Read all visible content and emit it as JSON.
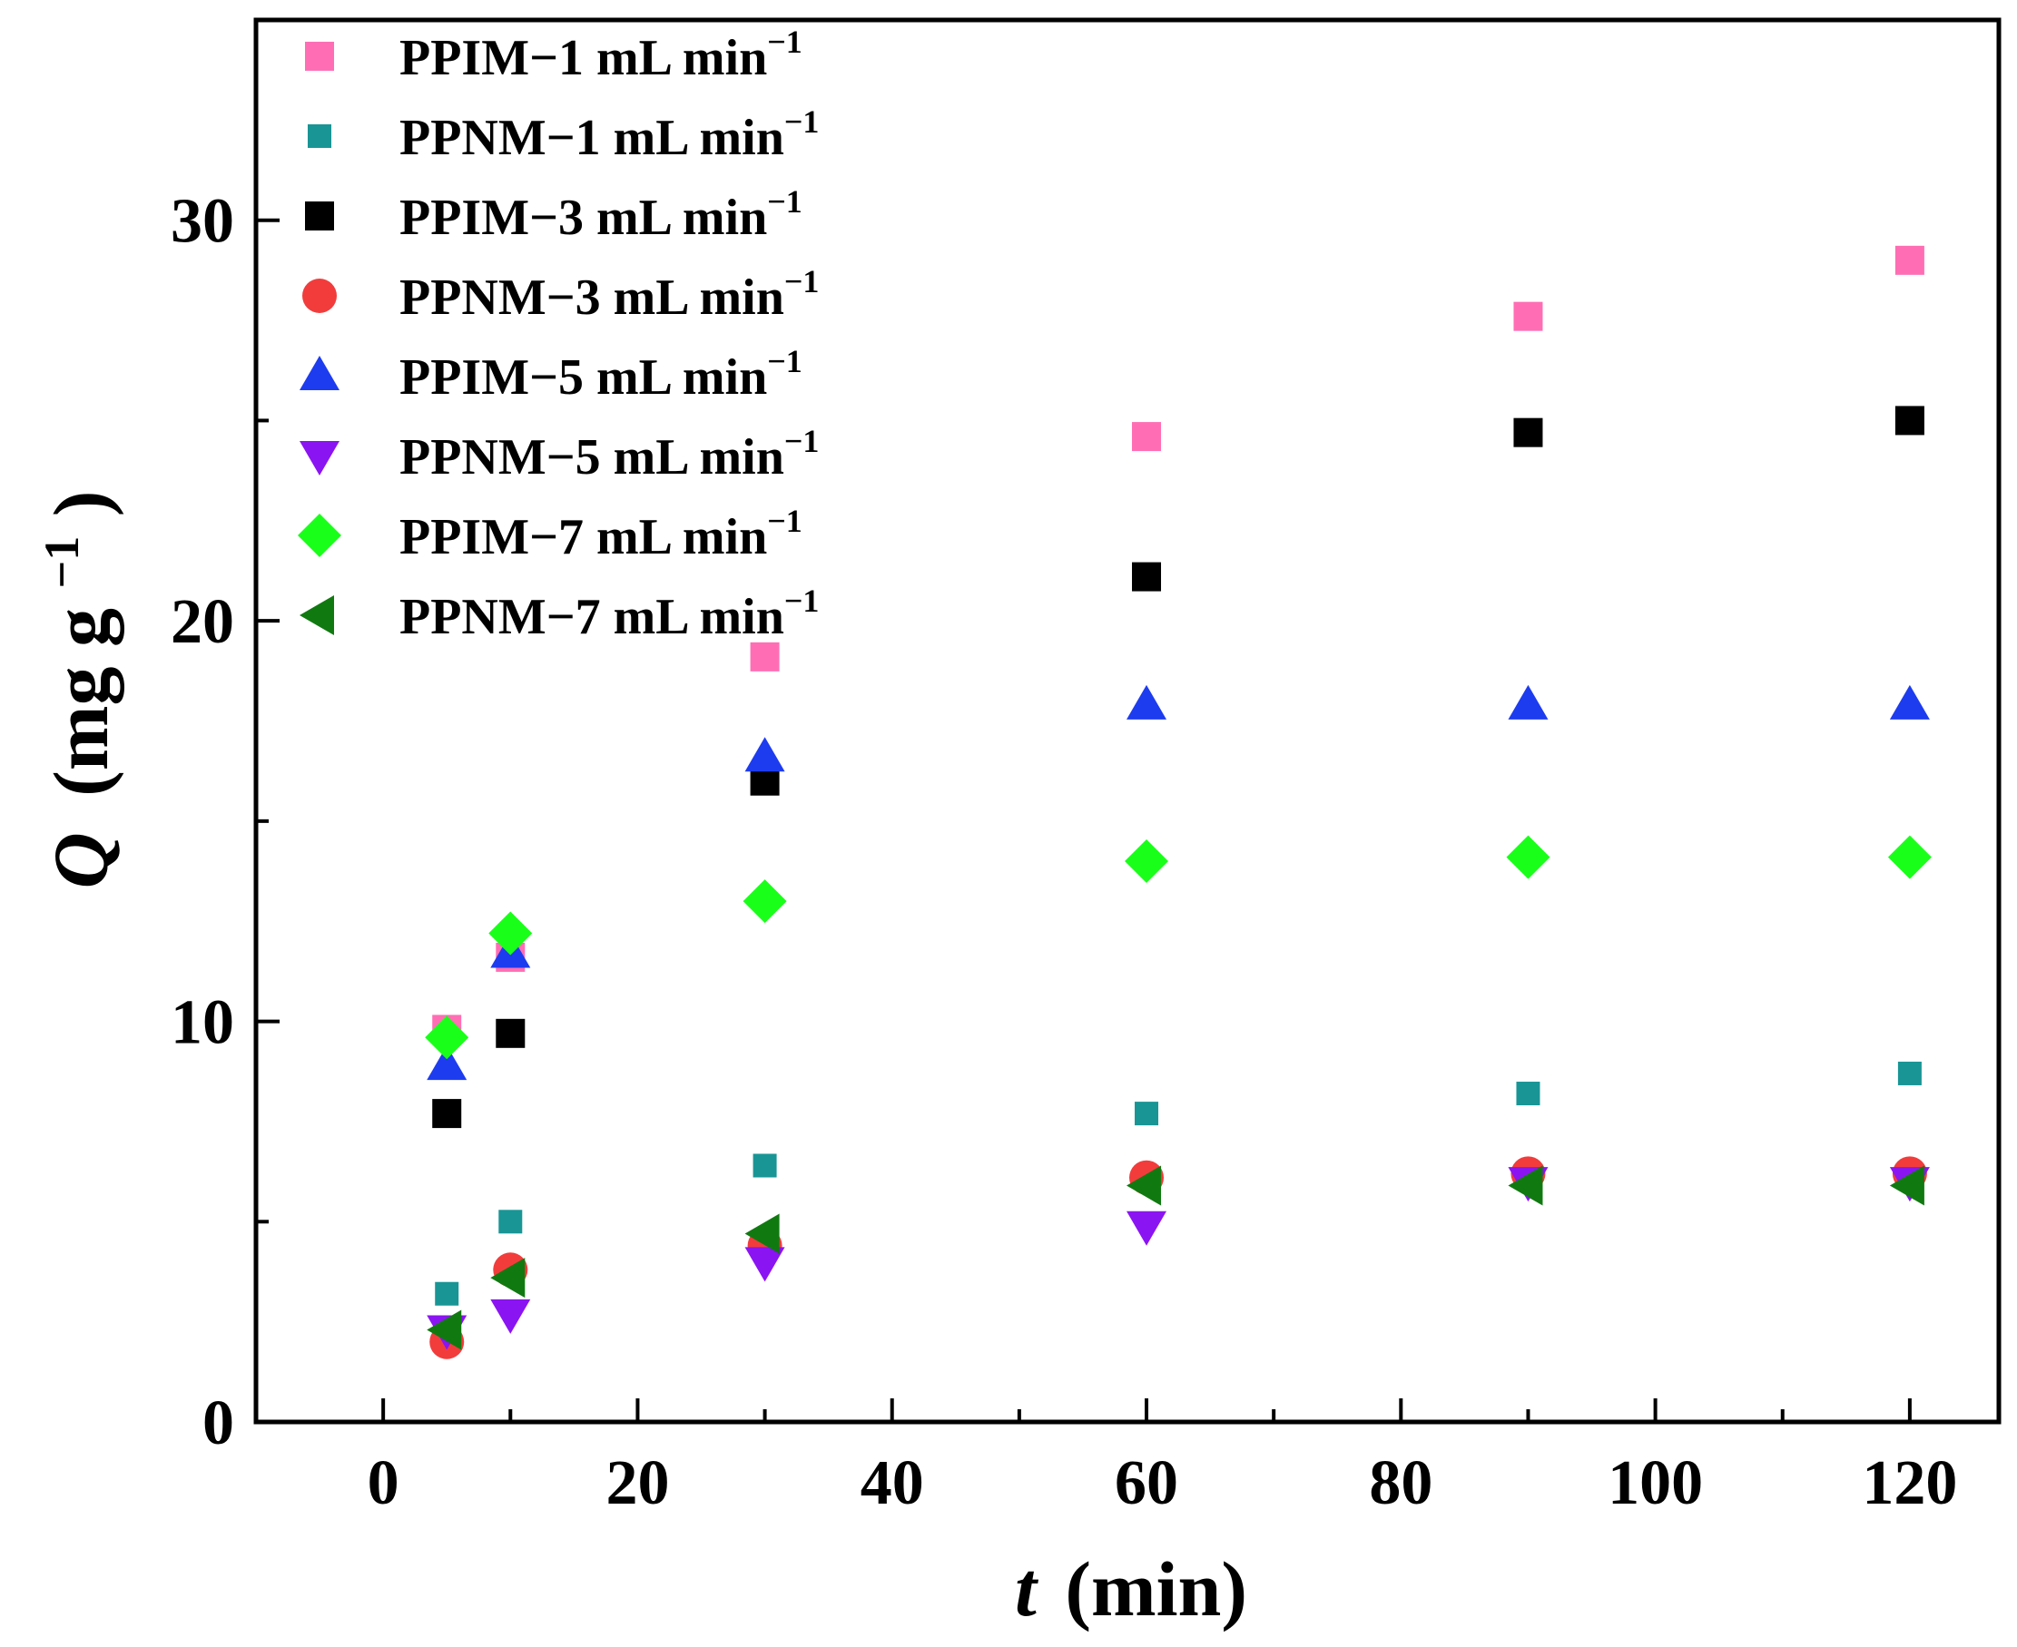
{
  "chart_data": {
    "type": "scatter",
    "xlabel": "(min)",
    "xlabel_italic": "t",
    "ylabel": "(mg g",
    "ylabel_italic": "Q",
    "ylabel_sup": "−1",
    "ylabel_close": ")",
    "xlim": [
      -10,
      127
    ],
    "ylim": [
      0,
      35
    ],
    "x_ticks": [
      0,
      20,
      40,
      60,
      80,
      100,
      120
    ],
    "x_ticks_minor": [
      10,
      30,
      50,
      70,
      90,
      110
    ],
    "y_ticks": [
      0,
      10,
      20,
      30
    ],
    "y_ticks_minor": [
      5,
      15,
      25
    ],
    "legend_position": "top-left",
    "series": [
      {
        "name": "PPIM−1 mL min",
        "sup": "−1",
        "marker": "square",
        "color": "#ff6eb4",
        "x": [
          5,
          10,
          30,
          60,
          90,
          120
        ],
        "y": [
          9.8,
          11.6,
          19.1,
          24.6,
          27.6,
          29.0
        ]
      },
      {
        "name": "PPNM−1 mL min",
        "sup": "−1",
        "marker": "square-small",
        "color": "#199595",
        "x": [
          5,
          10,
          30,
          60,
          90,
          120
        ],
        "y": [
          3.2,
          5.0,
          6.4,
          7.7,
          8.2,
          8.7
        ]
      },
      {
        "name": "PPIM−3 mL min",
        "sup": "−1",
        "marker": "square",
        "color": "#000000",
        "x": [
          5,
          10,
          30,
          60,
          90,
          120
        ],
        "y": [
          7.7,
          9.7,
          16.0,
          21.1,
          24.7,
          25.0
        ]
      },
      {
        "name": "PPNM−3 mL min",
        "sup": "−1",
        "marker": "circle",
        "color": "#f23c3c",
        "x": [
          5,
          10,
          30,
          60,
          90,
          120
        ],
        "y": [
          2.0,
          3.8,
          4.4,
          6.1,
          6.2,
          6.2
        ]
      },
      {
        "name": "PPIM−5 mL min",
        "sup": "−1",
        "marker": "triangle-up",
        "color": "#1d3cf0",
        "x": [
          5,
          10,
          30,
          60,
          90,
          120
        ],
        "y": [
          8.9,
          11.7,
          16.6,
          17.9,
          17.9,
          17.9
        ]
      },
      {
        "name": "PPNM−5 mL min",
        "sup": "−1",
        "marker": "triangle-down",
        "color": "#8b14f2",
        "x": [
          5,
          10,
          30,
          60,
          90,
          120
        ],
        "y": [
          2.3,
          2.7,
          4.0,
          4.9,
          6.0,
          6.0
        ]
      },
      {
        "name": "PPIM−7 mL min",
        "sup": "−1",
        "marker": "diamond",
        "color": "#1aff1a",
        "x": [
          5,
          10,
          30,
          60,
          90,
          120
        ],
        "y": [
          9.6,
          12.2,
          13.0,
          14.0,
          14.1,
          14.1
        ]
      },
      {
        "name": "PPNM−7 mL min",
        "sup": "−1",
        "marker": "triangle-left",
        "color": "#107a10",
        "x": [
          5,
          10,
          30,
          60,
          90,
          120
        ],
        "y": [
          2.3,
          3.6,
          4.7,
          5.9,
          5.9,
          5.9
        ]
      }
    ]
  }
}
